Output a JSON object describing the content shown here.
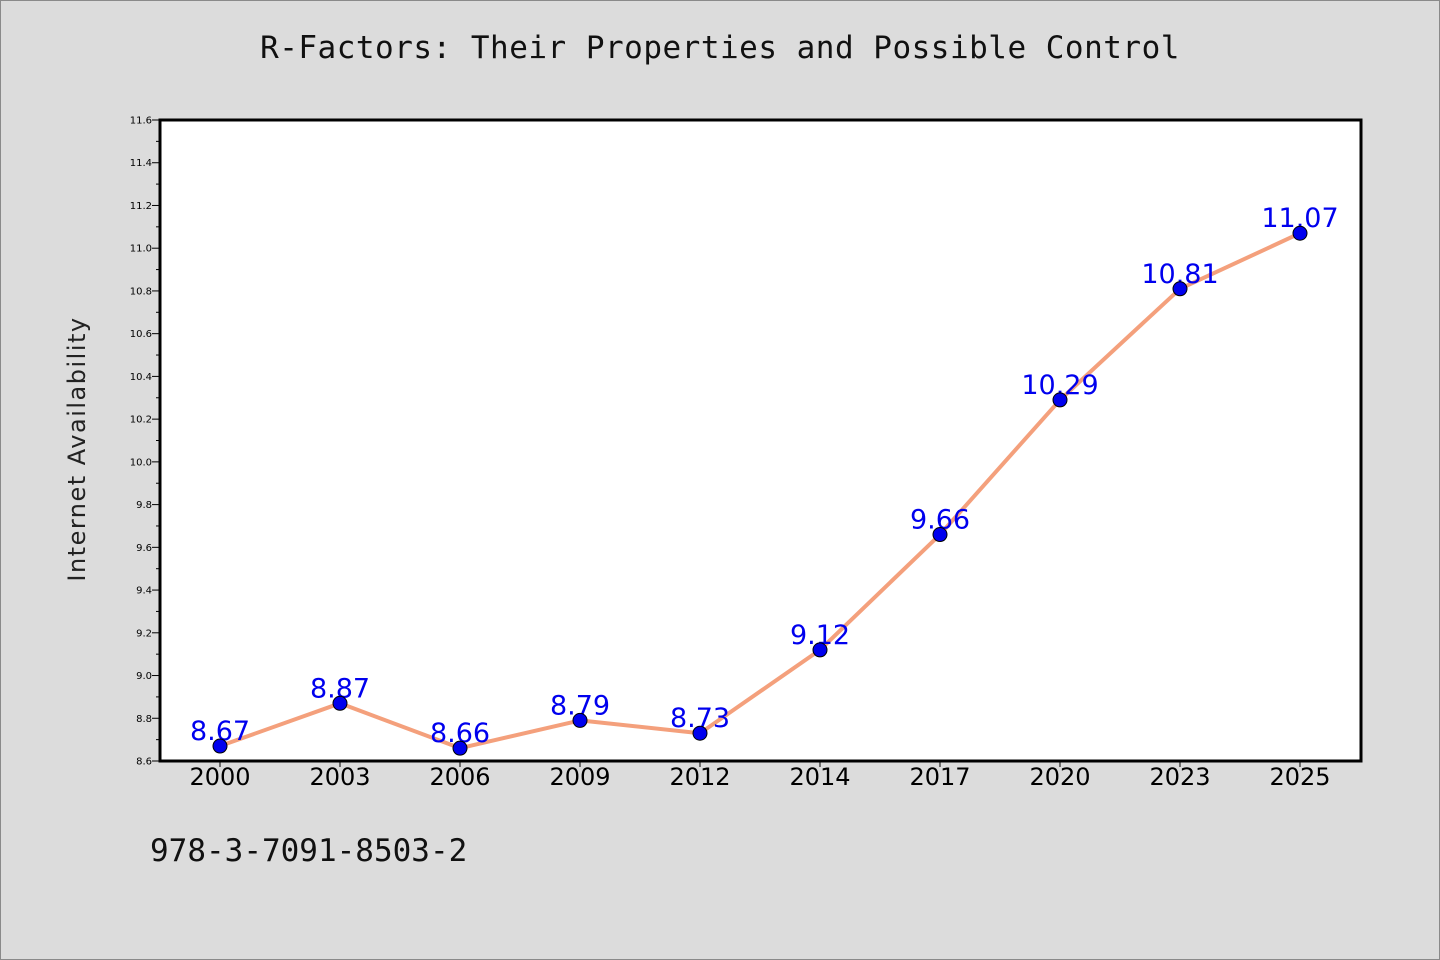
{
  "chart_data": {
    "type": "line",
    "title": "R-Factors: Their Properties and Possible Control",
    "xlabel": "",
    "ylabel": "Internet Availability",
    "categories": [
      "2000",
      "2003",
      "2006",
      "2009",
      "2012",
      "2014",
      "2017",
      "2020",
      "2023",
      "2025"
    ],
    "series": [
      {
        "values": [
          8.67,
          8.87,
          8.66,
          8.79,
          8.73,
          9.12,
          9.66,
          10.29,
          10.81,
          11.07
        ],
        "line_color": "#f4a07c",
        "marker_color": "#0000ee"
      }
    ],
    "data_labels": [
      "8.67",
      "8.87",
      "8.66",
      "8.79",
      "8.73",
      "9.12",
      "9.66",
      "10.29",
      "10.81",
      "11.07"
    ],
    "yticks": [
      "8.6",
      "8.8",
      "9.0",
      "9.2",
      "9.4",
      "9.6",
      "9.8",
      "10.0",
      "10.2",
      "10.4",
      "10.6",
      "10.8",
      "11.0",
      "11.2",
      "11.4",
      "11.6"
    ],
    "ylim": [
      8.6,
      11.6
    ],
    "grid": false,
    "label_color": "#0000ee"
  },
  "footer": {
    "isbn": "978-3-7091-8503-2"
  }
}
